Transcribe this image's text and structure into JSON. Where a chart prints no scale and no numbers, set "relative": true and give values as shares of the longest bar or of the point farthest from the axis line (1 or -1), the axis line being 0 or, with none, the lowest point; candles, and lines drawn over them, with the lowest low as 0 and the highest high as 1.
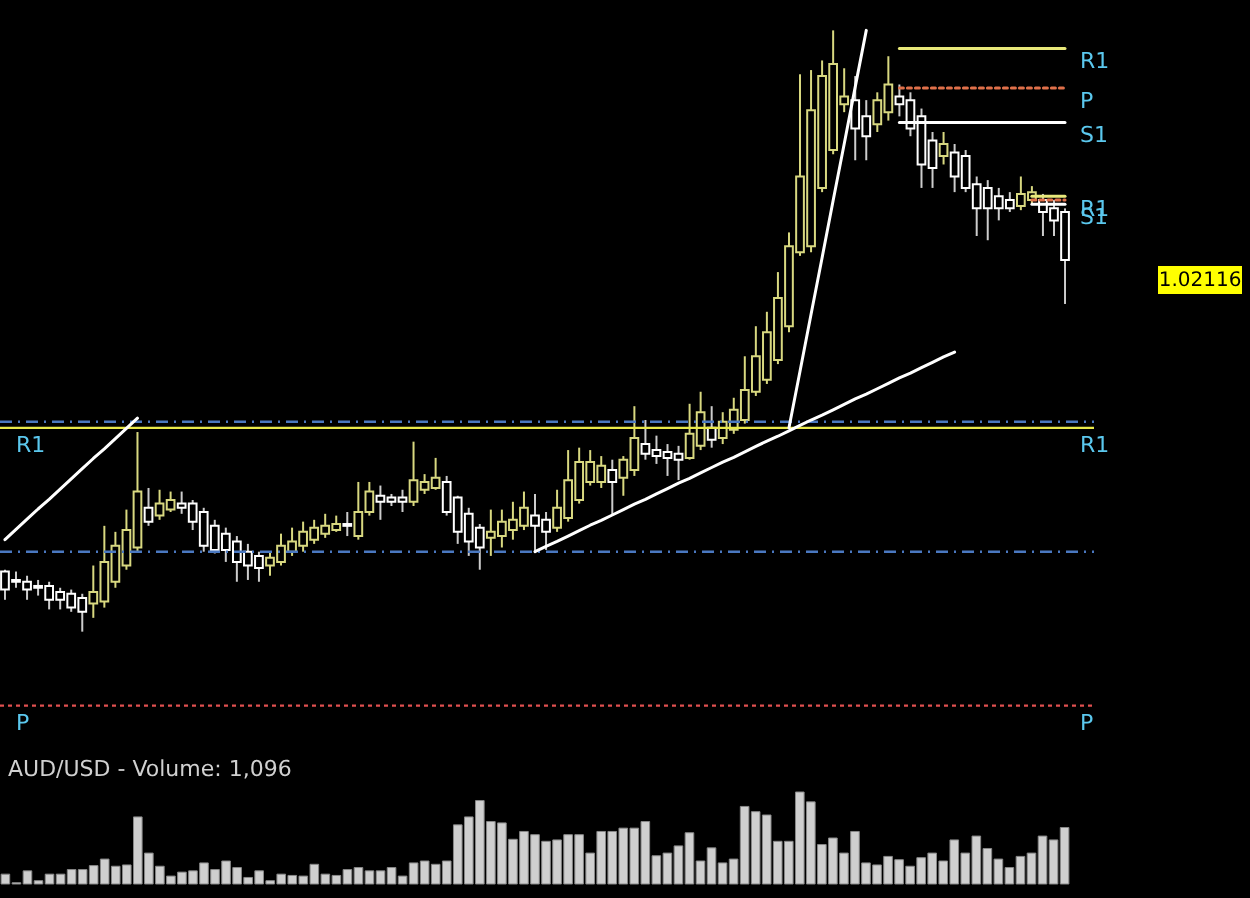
{
  "chart_data": [
    {
      "type": "candlestick",
      "relative": true,
      "categories": [
        null,
        null,
        null,
        null,
        null,
        null,
        null,
        null,
        null,
        null,
        null,
        null,
        null,
        null,
        null,
        null,
        null,
        null,
        null,
        null,
        null,
        null,
        null,
        null,
        null,
        null,
        null,
        null,
        null,
        null,
        null,
        null,
        null,
        null,
        null,
        null,
        null,
        null,
        null,
        null,
        null,
        null,
        null,
        null,
        null,
        null,
        null,
        null,
        null,
        null,
        null,
        null,
        null,
        null,
        null,
        null,
        null,
        null,
        null,
        null,
        null,
        null,
        null,
        null,
        null,
        null,
        null,
        null,
        null,
        null,
        null,
        null,
        null,
        null,
        null,
        null,
        null,
        null,
        null,
        null,
        null,
        null,
        null,
        null,
        null,
        null,
        null,
        null,
        null,
        null,
        null,
        null,
        null,
        null,
        null,
        null,
        null
      ],
      "ohlc": [
        [
          0.1,
          0.103,
          0.053,
          0.07
        ],
        [
          0.086,
          0.1,
          0.073,
          0.083
        ],
        [
          0.083,
          0.093,
          0.053,
          0.07
        ],
        [
          0.076,
          0.086,
          0.06,
          0.073
        ],
        [
          0.076,
          0.083,
          0.037,
          0.053
        ],
        [
          0.066,
          0.073,
          0.037,
          0.053
        ],
        [
          0.063,
          0.07,
          0.033,
          0.04
        ],
        [
          0.056,
          0.063,
          0,
          0.033
        ],
        [
          0.047,
          0.11,
          0.023,
          0.066
        ],
        [
          0.05,
          0.176,
          0.04,
          0.116
        ],
        [
          0.083,
          0.166,
          0.073,
          0.143
        ],
        [
          0.11,
          0.203,
          0.103,
          0.169
        ],
        [
          0.14,
          0.332,
          0.133,
          0.233
        ],
        [
          0.206,
          0.239,
          0.176,
          0.183
        ],
        [
          0.193,
          0.236,
          0.186,
          0.213
        ],
        [
          0.203,
          0.233,
          0.199,
          0.219
        ],
        [
          0.213,
          0.233,
          0.196,
          0.206
        ],
        [
          0.213,
          0.219,
          0.169,
          0.183
        ],
        [
          0.199,
          0.206,
          0.133,
          0.143
        ],
        [
          0.176,
          0.186,
          0.13,
          0.136
        ],
        [
          0.163,
          0.173,
          0.116,
          0.136
        ],
        [
          0.15,
          0.159,
          0.083,
          0.116
        ],
        [
          0.133,
          0.146,
          0.086,
          0.11
        ],
        [
          0.126,
          0.133,
          0.083,
          0.106
        ],
        [
          0.11,
          0.133,
          0.093,
          0.123
        ],
        [
          0.116,
          0.163,
          0.11,
          0.143
        ],
        [
          0.133,
          0.173,
          0.126,
          0.15
        ],
        [
          0.143,
          0.183,
          0.133,
          0.166
        ],
        [
          0.153,
          0.186,
          0.146,
          0.173
        ],
        [
          0.163,
          0.196,
          0.156,
          0.176
        ],
        [
          0.169,
          0.193,
          0.166,
          0.179
        ],
        [
          0.179,
          0.199,
          0.159,
          0.176
        ],
        [
          0.159,
          0.249,
          0.153,
          0.199
        ],
        [
          0.199,
          0.249,
          0.193,
          0.233
        ],
        [
          0.226,
          0.243,
          0.186,
          0.216
        ],
        [
          0.223,
          0.229,
          0.209,
          0.216
        ],
        [
          0.223,
          0.236,
          0.199,
          0.216
        ],
        [
          0.216,
          0.316,
          0.209,
          0.252
        ],
        [
          0.236,
          0.262,
          0.229,
          0.249
        ],
        [
          0.239,
          0.289,
          0.236,
          0.256
        ],
        [
          0.249,
          0.259,
          0.193,
          0.199
        ],
        [
          0.223,
          0.226,
          0.146,
          0.166
        ],
        [
          0.196,
          0.206,
          0.126,
          0.15
        ],
        [
          0.173,
          0.179,
          0.103,
          0.14
        ],
        [
          0.156,
          0.203,
          0.126,
          0.166
        ],
        [
          0.159,
          0.203,
          0.14,
          0.183
        ],
        [
          0.169,
          0.216,
          0.153,
          0.186
        ],
        [
          0.176,
          0.233,
          0.169,
          0.206
        ],
        [
          0.193,
          0.229,
          0.133,
          0.176
        ],
        [
          0.186,
          0.199,
          0.136,
          0.166
        ],
        [
          0.173,
          0.236,
          0.166,
          0.206
        ],
        [
          0.189,
          0.302,
          0.183,
          0.252
        ],
        [
          0.219,
          0.306,
          0.213,
          0.282
        ],
        [
          0.249,
          0.302,
          0.243,
          0.282
        ],
        [
          0.249,
          0.292,
          0.239,
          0.276
        ],
        [
          0.269,
          0.286,
          0.193,
          0.249
        ],
        [
          0.256,
          0.292,
          0.226,
          0.286
        ],
        [
          0.269,
          0.375,
          0.259,
          0.322
        ],
        [
          0.312,
          0.352,
          0.286,
          0.296
        ],
        [
          0.302,
          0.326,
          0.279,
          0.292
        ],
        [
          0.299,
          0.312,
          0.259,
          0.289
        ],
        [
          0.296,
          0.309,
          0.252,
          0.286
        ],
        [
          0.289,
          0.379,
          0.286,
          0.329
        ],
        [
          0.309,
          0.399,
          0.302,
          0.365
        ],
        [
          0.339,
          0.375,
          0.306,
          0.319
        ],
        [
          0.322,
          0.365,
          0.312,
          0.349
        ],
        [
          0.336,
          0.389,
          0.329,
          0.369
        ],
        [
          0.352,
          0.458,
          0.346,
          0.402
        ],
        [
          0.399,
          0.508,
          0.392,
          0.458
        ],
        [
          0.419,
          0.532,
          0.412,
          0.498
        ],
        [
          0.452,
          0.598,
          0.445,
          0.555
        ],
        [
          0.508,
          0.664,
          0.498,
          0.641
        ],
        [
          0.631,
          0.927,
          0.625,
          0.757
        ],
        [
          0.641,
          0.934,
          0.631,
          0.867
        ],
        [
          0.738,
          0.95,
          0.731,
          0.924
        ],
        [
          0.801,
          1,
          0.794,
          0.944
        ],
        [
          0.877,
          0.937,
          0.864,
          0.89
        ],
        [
          0.884,
          0.924,
          0.784,
          0.837
        ],
        [
          0.857,
          0.884,
          0.784,
          0.824
        ],
        [
          0.844,
          0.897,
          0.831,
          0.884
        ],
        [
          0.864,
          0.957,
          0.85,
          0.91
        ],
        [
          0.89,
          0.91,
          0.857,
          0.877
        ],
        [
          0.884,
          0.897,
          0.824,
          0.837
        ],
        [
          0.857,
          0.87,
          0.738,
          0.777
        ],
        [
          0.817,
          0.831,
          0.738,
          0.771
        ],
        [
          0.791,
          0.831,
          0.777,
          0.811
        ],
        [
          0.797,
          0.811,
          0.731,
          0.757
        ],
        [
          0.791,
          0.801,
          0.731,
          0.738
        ],
        [
          0.744,
          0.757,
          0.658,
          0.704
        ],
        [
          0.738,
          0.751,
          0.651,
          0.704
        ],
        [
          0.724,
          0.738,
          0.684,
          0.704
        ],
        [
          0.718,
          0.731,
          0.698,
          0.704
        ],
        [
          0.708,
          0.757,
          0.701,
          0.728
        ],
        [
          0.718,
          0.741,
          0.711,
          0.731
        ],
        [
          0.718,
          0.728,
          0.658,
          0.698
        ],
        [
          0.704,
          0.718,
          0.658,
          0.684
        ],
        [
          0.698,
          0.704,
          0.545,
          0.618
        ]
      ],
      "series": [
        {
          "type": "line",
          "color": "#ffffff",
          "values": [
            0.153,
            0.17,
            0.187,
            0.204,
            0.22,
            0.237,
            0.254,
            0.271,
            0.288,
            0.304,
            0.321,
            0.338,
            0.355,
            null,
            null,
            null,
            null,
            null,
            null,
            null,
            null,
            null,
            null,
            null,
            null,
            null,
            null,
            null,
            null,
            null,
            null,
            null,
            null,
            null,
            null,
            null,
            null,
            null,
            null,
            null,
            null,
            null,
            null,
            null,
            null,
            null,
            null,
            null,
            null,
            null,
            null,
            null,
            null,
            null,
            null,
            null,
            null,
            null,
            null,
            null,
            null,
            null,
            null,
            null,
            null,
            null,
            null,
            null,
            null,
            null,
            null,
            null,
            null,
            null,
            null,
            null,
            null,
            null,
            null,
            null,
            null,
            null,
            null,
            null,
            null,
            null,
            null,
            null,
            null,
            null,
            null,
            null,
            null,
            null,
            null,
            null,
            null
          ]
        },
        {
          "type": "line",
          "color": "#ffffff",
          "values": [
            null,
            null,
            null,
            null,
            null,
            null,
            null,
            null,
            null,
            null,
            null,
            null,
            null,
            null,
            null,
            null,
            null,
            null,
            null,
            null,
            null,
            null,
            null,
            null,
            null,
            null,
            null,
            null,
            null,
            null,
            null,
            null,
            null,
            null,
            null,
            null,
            null,
            null,
            null,
            null,
            null,
            null,
            null,
            null,
            null,
            null,
            null,
            null,
            0.133,
            0.142,
            0.15,
            0.159,
            0.168,
            0.177,
            0.185,
            0.194,
            0.203,
            0.212,
            0.22,
            0.229,
            0.238,
            0.247,
            0.255,
            0.264,
            0.273,
            0.282,
            0.29,
            0.299,
            0.308,
            0.317,
            0.325,
            0.334,
            0.343,
            0.352,
            0.36,
            0.369,
            0.378,
            0.387,
            0.395,
            0.404,
            0.413,
            0.422,
            0.43,
            0.439,
            0.448,
            0.457,
            0.465,
            null,
            null,
            null,
            null,
            null,
            null,
            null,
            null,
            null,
            null
          ]
        },
        {
          "type": "line",
          "color": "#ffffff",
          "values": [
            null,
            null,
            null,
            null,
            null,
            null,
            null,
            null,
            null,
            null,
            null,
            null,
            null,
            null,
            null,
            null,
            null,
            null,
            null,
            null,
            null,
            null,
            null,
            null,
            null,
            null,
            null,
            null,
            null,
            null,
            null,
            null,
            null,
            null,
            null,
            null,
            null,
            null,
            null,
            null,
            null,
            null,
            null,
            null,
            null,
            null,
            null,
            null,
            null,
            null,
            null,
            null,
            null,
            null,
            null,
            null,
            null,
            null,
            null,
            null,
            null,
            null,
            null,
            null,
            null,
            null,
            null,
            null,
            null,
            null,
            null,
            0.339,
            0.433,
            0.528,
            0.622,
            0.717,
            0.811,
            0.906,
            1.0,
            null,
            null,
            null,
            null,
            null,
            null,
            null,
            null,
            null,
            null,
            null,
            null,
            null,
            null,
            null,
            null,
            null,
            null
          ]
        },
        {
          "type": "line",
          "name": "R1",
          "color": "#e8e87a",
          "values": [
            null,
            null,
            null,
            null,
            null,
            null,
            null,
            null,
            null,
            null,
            null,
            null,
            null,
            null,
            null,
            null,
            null,
            null,
            null,
            null,
            null,
            null,
            null,
            null,
            null,
            null,
            null,
            null,
            null,
            null,
            null,
            null,
            null,
            null,
            null,
            null,
            null,
            null,
            null,
            null,
            null,
            null,
            null,
            null,
            null,
            null,
            null,
            null,
            null,
            null,
            null,
            null,
            null,
            null,
            null,
            null,
            null,
            null,
            null,
            null,
            null,
            null,
            null,
            null,
            null,
            null,
            null,
            null,
            null,
            null,
            null,
            null,
            null,
            null,
            null,
            null,
            null,
            null,
            null,
            null,
            null,
            0.97,
            0.97,
            0.97,
            0.97,
            0.97,
            0.97,
            0.97,
            0.97,
            0.97,
            0.97,
            0.97,
            0.97,
            0.97,
            0.97,
            0.97,
            0.97
          ]
        },
        {
          "type": "line",
          "name": "P",
          "color": "#e0704a",
          "line_style": "dotted",
          "values": [
            null,
            null,
            null,
            null,
            null,
            null,
            null,
            null,
            null,
            null,
            null,
            null,
            null,
            null,
            null,
            null,
            null,
            null,
            null,
            null,
            null,
            null,
            null,
            null,
            null,
            null,
            null,
            null,
            null,
            null,
            null,
            null,
            null,
            null,
            null,
            null,
            null,
            null,
            null,
            null,
            null,
            null,
            null,
            null,
            null,
            null,
            null,
            null,
            null,
            null,
            null,
            null,
            null,
            null,
            null,
            null,
            null,
            null,
            null,
            null,
            null,
            null,
            null,
            null,
            null,
            null,
            null,
            null,
            null,
            null,
            null,
            null,
            null,
            null,
            null,
            null,
            null,
            null,
            null,
            null,
            null,
            0.904,
            0.904,
            0.904,
            0.904,
            0.904,
            0.904,
            0.904,
            0.904,
            0.904,
            0.904,
            0.904,
            0.904,
            0.904,
            0.904,
            0.904,
            0.904
          ]
        },
        {
          "type": "line",
          "name": "S1",
          "color": "#ffffff",
          "values": [
            null,
            null,
            null,
            null,
            null,
            null,
            null,
            null,
            null,
            null,
            null,
            null,
            null,
            null,
            null,
            null,
            null,
            null,
            null,
            null,
            null,
            null,
            null,
            null,
            null,
            null,
            null,
            null,
            null,
            null,
            null,
            null,
            null,
            null,
            null,
            null,
            null,
            null,
            null,
            null,
            null,
            null,
            null,
            null,
            null,
            null,
            null,
            null,
            null,
            null,
            null,
            null,
            null,
            null,
            null,
            null,
            null,
            null,
            null,
            null,
            null,
            null,
            null,
            null,
            null,
            null,
            null,
            null,
            null,
            null,
            null,
            null,
            null,
            null,
            null,
            null,
            null,
            null,
            null,
            null,
            null,
            0.847,
            0.847,
            0.847,
            0.847,
            0.847,
            0.847,
            0.847,
            0.847,
            0.847,
            0.847,
            0.847,
            0.847,
            0.847,
            0.847,
            0.847,
            0.847
          ]
        },
        {
          "type": "line",
          "name": "R1",
          "color": "#e8e87a",
          "values": [
            null,
            null,
            null,
            null,
            null,
            null,
            null,
            null,
            null,
            null,
            null,
            null,
            null,
            null,
            null,
            null,
            null,
            null,
            null,
            null,
            null,
            null,
            null,
            null,
            null,
            null,
            null,
            null,
            null,
            null,
            null,
            null,
            null,
            null,
            null,
            null,
            null,
            null,
            null,
            null,
            null,
            null,
            null,
            null,
            null,
            null,
            null,
            null,
            null,
            null,
            null,
            null,
            null,
            null,
            null,
            null,
            null,
            null,
            null,
            null,
            null,
            null,
            null,
            null,
            null,
            null,
            null,
            null,
            null,
            null,
            null,
            null,
            null,
            null,
            null,
            null,
            null,
            null,
            null,
            null,
            null,
            null,
            null,
            null,
            null,
            null,
            null,
            null,
            null,
            null,
            null,
            null,
            null,
            0.724,
            0.724,
            0.724,
            0.724
          ]
        },
        {
          "type": "line",
          "color": "#e0704a",
          "line_style": "dotted",
          "values": [
            null,
            null,
            null,
            null,
            null,
            null,
            null,
            null,
            null,
            null,
            null,
            null,
            null,
            null,
            null,
            null,
            null,
            null,
            null,
            null,
            null,
            null,
            null,
            null,
            null,
            null,
            null,
            null,
            null,
            null,
            null,
            null,
            null,
            null,
            null,
            null,
            null,
            null,
            null,
            null,
            null,
            null,
            null,
            null,
            null,
            null,
            null,
            null,
            null,
            null,
            null,
            null,
            null,
            null,
            null,
            null,
            null,
            null,
            null,
            null,
            null,
            null,
            null,
            null,
            null,
            null,
            null,
            null,
            null,
            null,
            null,
            null,
            null,
            null,
            null,
            null,
            null,
            null,
            null,
            null,
            null,
            null,
            null,
            null,
            null,
            null,
            null,
            null,
            null,
            null,
            null,
            null,
            null,
            0.718,
            0.718,
            0.718,
            0.718
          ]
        },
        {
          "type": "line",
          "name": "S1",
          "color": "#ffffff",
          "values": [
            null,
            null,
            null,
            null,
            null,
            null,
            null,
            null,
            null,
            null,
            null,
            null,
            null,
            null,
            null,
            null,
            null,
            null,
            null,
            null,
            null,
            null,
            null,
            null,
            null,
            null,
            null,
            null,
            null,
            null,
            null,
            null,
            null,
            null,
            null,
            null,
            null,
            null,
            null,
            null,
            null,
            null,
            null,
            null,
            null,
            null,
            null,
            null,
            null,
            null,
            null,
            null,
            null,
            null,
            null,
            null,
            null,
            null,
            null,
            null,
            null,
            null,
            null,
            null,
            null,
            null,
            null,
            null,
            null,
            null,
            null,
            null,
            null,
            null,
            null,
            null,
            null,
            null,
            null,
            null,
            null,
            null,
            null,
            null,
            null,
            null,
            null,
            null,
            null,
            null,
            null,
            null,
            null,
            0.711,
            0.711,
            0.711,
            0.711
          ]
        }
      ],
      "ref_lines": [
        {
          "axis": "y",
          "value": 0.339,
          "label": "R1",
          "color": "#e8e84a"
        },
        {
          "axis": "y",
          "value": 0.349,
          "color": "#4a78c0",
          "line_style": "dashed"
        },
        {
          "axis": "y",
          "value": 0.133,
          "color": "#4a78c0",
          "line_style": "dashed"
        },
        {
          "axis": "y",
          "value": -0.123,
          "label": "P",
          "color": "#e05050",
          "line_style": "dotted"
        }
      ],
      "annotations": [
        "1.02116"
      ]
    },
    {
      "type": "bar",
      "relative": true,
      "title": "AUD/USD - Volume: 1,096",
      "color": "#cfcfcf",
      "categories": [
        null,
        null,
        null,
        null,
        null,
        null,
        null,
        null,
        null,
        null,
        null,
        null,
        null,
        null,
        null,
        null,
        null,
        null,
        null,
        null,
        null,
        null,
        null,
        null,
        null,
        null,
        null,
        null,
        null,
        null,
        null,
        null,
        null,
        null,
        null,
        null,
        null,
        null,
        null,
        null,
        null,
        null,
        null,
        null,
        null,
        null,
        null,
        null,
        null,
        null,
        null,
        null,
        null,
        null,
        null,
        null,
        null,
        null,
        null,
        null,
        null,
        null,
        null,
        null,
        null,
        null,
        null,
        null,
        null,
        null,
        null,
        null,
        null,
        null,
        null,
        null,
        null,
        null,
        null,
        null,
        null,
        null,
        null,
        null,
        null,
        null,
        null,
        null,
        null,
        null,
        null,
        null,
        null,
        null,
        null,
        null,
        null
      ],
      "values": [
        0.107,
        0.014,
        0.143,
        0.036,
        0.107,
        0.107,
        0.157,
        0.157,
        0.2,
        0.271,
        0.193,
        0.207,
        0.729,
        0.336,
        0.193,
        0.086,
        0.129,
        0.143,
        0.229,
        0.157,
        0.25,
        0.179,
        0.071,
        0.143,
        0.036,
        0.107,
        0.093,
        0.086,
        0.214,
        0.107,
        0.093,
        0.157,
        0.179,
        0.143,
        0.143,
        0.179,
        0.086,
        0.229,
        0.25,
        0.214,
        0.25,
        0.643,
        0.729,
        0.907,
        0.679,
        0.664,
        0.486,
        0.571,
        0.536,
        0.464,
        0.479,
        0.536,
        0.536,
        0.336,
        0.571,
        0.571,
        0.607,
        0.607,
        0.679,
        0.307,
        0.336,
        0.414,
        0.557,
        0.25,
        0.393,
        0.229,
        0.271,
        0.843,
        0.786,
        0.75,
        0.464,
        0.464,
        1,
        0.893,
        0.429,
        0.5,
        0.336,
        0.571,
        0.229,
        0.207,
        0.3,
        0.264,
        0.193,
        0.286,
        0.336,
        0.25,
        0.479,
        0.336,
        0.521,
        0.386,
        0.271,
        0.179,
        0.3,
        0.336,
        0.521,
        0.479,
        0.614
      ]
    }
  ]
}
